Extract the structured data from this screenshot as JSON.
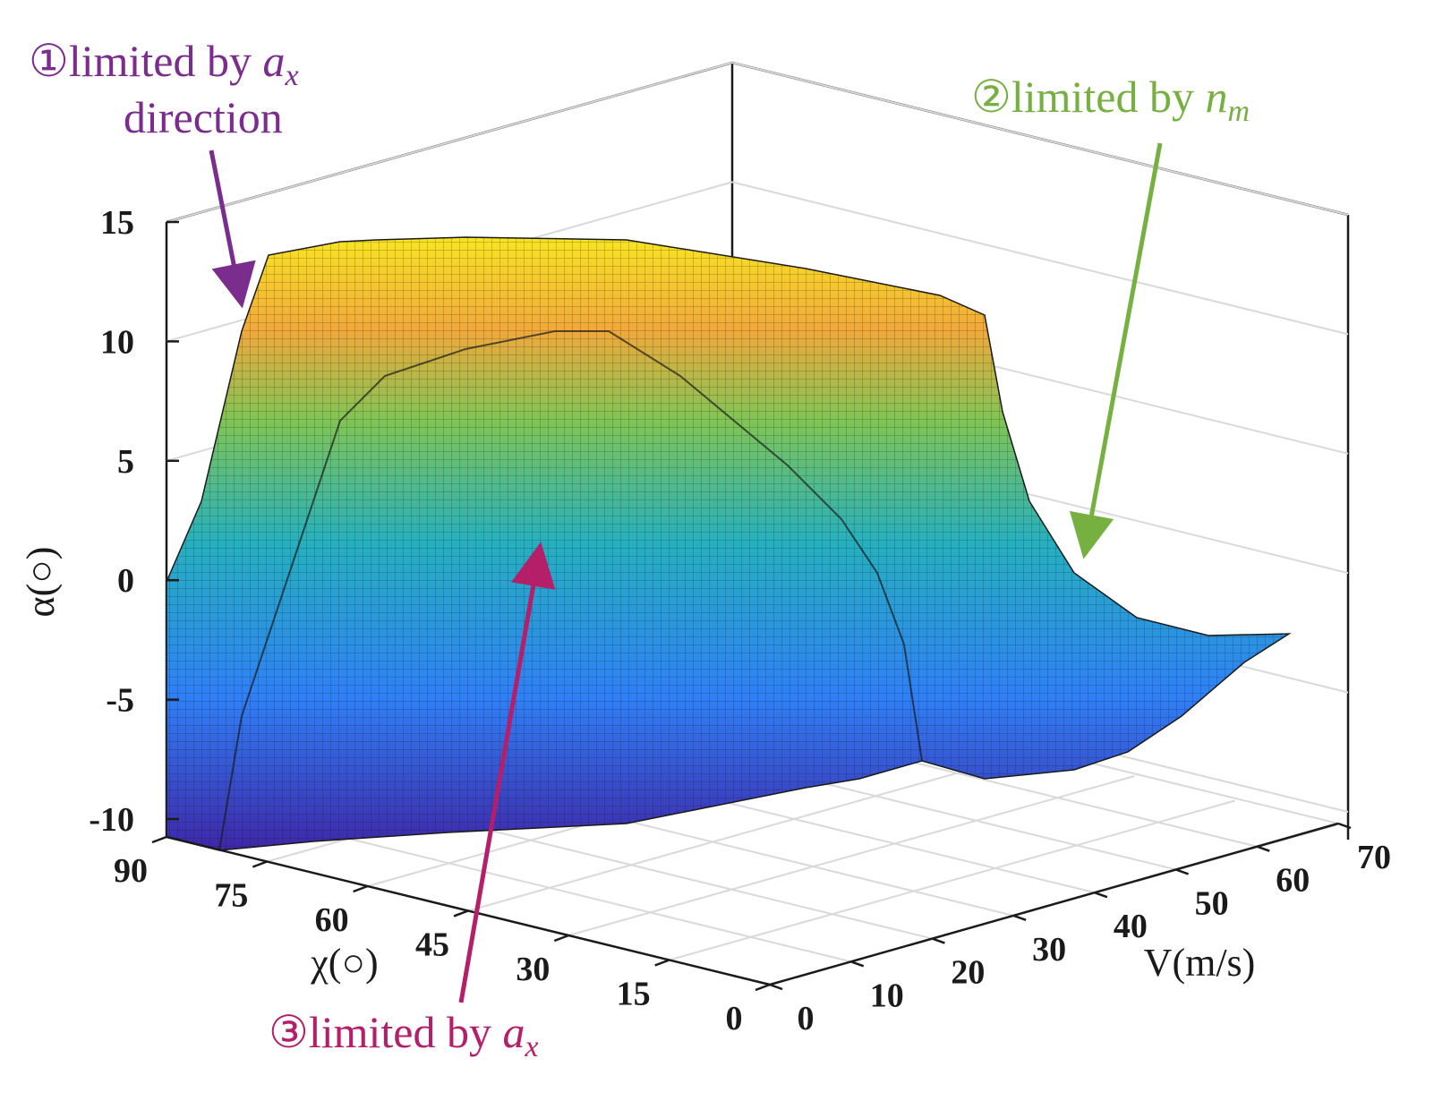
{
  "chart_data": {
    "type": "surface",
    "title": "",
    "xlabel": "V(m/s)",
    "ylabel": "χ(○)",
    "zlabel": "α(○)",
    "x_ticks": [
      0,
      10,
      20,
      30,
      40,
      50,
      60,
      70
    ],
    "y_ticks": [
      0,
      15,
      30,
      45,
      60,
      75,
      90
    ],
    "z_ticks": [
      -10,
      -5,
      0,
      5,
      10,
      15
    ],
    "xlim": [
      0,
      70
    ],
    "ylim": [
      0,
      90
    ],
    "zlim": [
      -10,
      15
    ],
    "colormap": "parula",
    "surface_samples": {
      "V": [
        0,
        10,
        20,
        30,
        40,
        50,
        60,
        70
      ],
      "chi": [
        0,
        15,
        30,
        45,
        60,
        75,
        90
      ],
      "alpha_max_plateau": 13.8,
      "alpha_at_V70": -1.5,
      "alpha_min_trough": -7.5
    },
    "annotations": [
      {
        "id": "1",
        "symbol": "①",
        "text": "limited by ",
        "var": "a",
        "sub": "x",
        "line2": "direction",
        "color": "#7b2d8e"
      },
      {
        "id": "2",
        "symbol": "②",
        "text": "limited by ",
        "var": "n",
        "sub": "m",
        "color": "#76b041"
      },
      {
        "id": "3",
        "symbol": "③",
        "text": "limited by ",
        "var": "a",
        "sub": "x",
        "color": "#b51f6a"
      }
    ]
  }
}
